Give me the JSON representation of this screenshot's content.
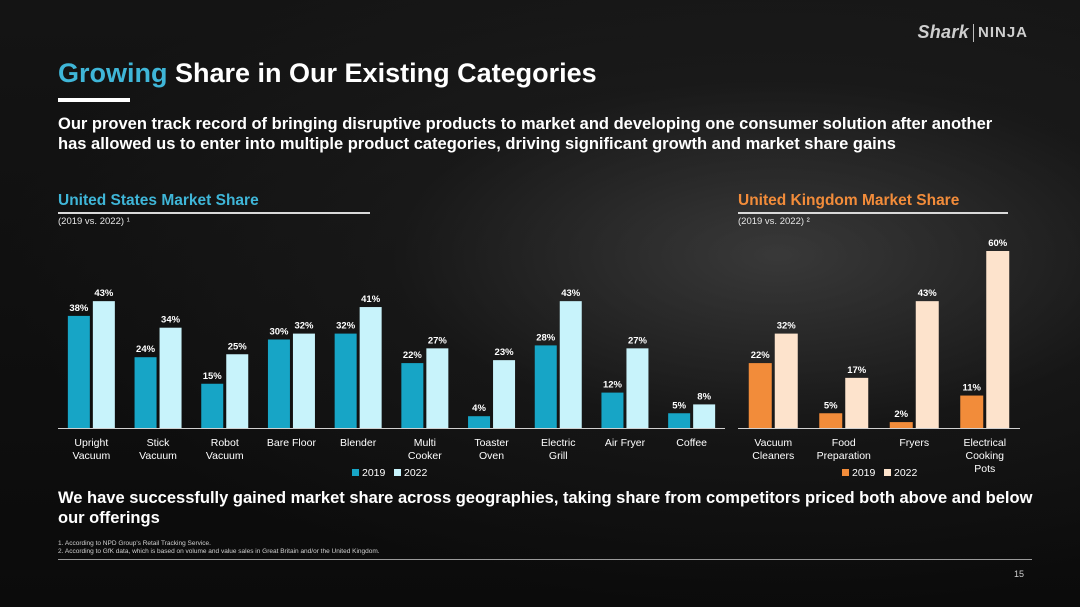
{
  "logo": {
    "brand1": "Shark",
    "brand2": "NINJA"
  },
  "header": {
    "title_accent": "Growing",
    "title_rest": " Share in Our Existing Categories",
    "intro": "Our proven track record of bringing disruptive products to market and developing one consumer solution after another has allowed us to enter into multiple product categories, driving significant growth and market share gains"
  },
  "us": {
    "title": "United States Market Share",
    "subtitle": "(2019 vs. 2022) ¹"
  },
  "uk": {
    "title": "United Kingdom Market Share",
    "subtitle": "(2019 vs. 2022) ²"
  },
  "chart_data": [
    {
      "type": "bar",
      "title": "United States Market Share",
      "subtitle": "(2019 vs. 2022) ¹",
      "categories": [
        [
          "Upright",
          "Vacuum"
        ],
        [
          "Stick",
          "Vacuum"
        ],
        [
          "Robot",
          "Vacuum"
        ],
        [
          "Bare Floor"
        ],
        [
          "Blender"
        ],
        [
          "Multi",
          "Cooker"
        ],
        [
          "Toaster",
          "Oven"
        ],
        [
          "Electric",
          "Grill"
        ],
        [
          "Air Fryer"
        ],
        [
          "Coffee"
        ]
      ],
      "series": [
        {
          "name": "2019",
          "color": "#17a5c6",
          "values": [
            38,
            24,
            15,
            30,
            32,
            22,
            4,
            28,
            12,
            5
          ]
        },
        {
          "name": "2022",
          "color": "#c8f3fb",
          "values": [
            43,
            34,
            25,
            32,
            41,
            27,
            23,
            43,
            27,
            8
          ]
        }
      ],
      "data_labels": [
        [
          "38%",
          "24%",
          "15%",
          "30%",
          "32%",
          "22%",
          "4%",
          "28%",
          "12%",
          "5%"
        ],
        [
          "43%",
          "34%",
          "25%",
          "32%",
          "41%",
          "27%",
          "23%",
          "43%",
          "27%",
          "8%"
        ]
      ],
      "unit": "%",
      "legend": "bottom-center"
    },
    {
      "type": "bar",
      "title": "United Kingdom Market Share",
      "subtitle": "(2019 vs. 2022) ²",
      "categories": [
        [
          "Vacuum",
          "Cleaners"
        ],
        [
          "Food",
          "Preparation"
        ],
        [
          "Fryers"
        ],
        [
          "Electrical",
          "Cooking",
          "Pots"
        ]
      ],
      "series": [
        {
          "name": "2019",
          "color": "#f28c3a",
          "values": [
            22,
            5,
            2,
            11
          ]
        },
        {
          "name": "2022",
          "color": "#fde3cc",
          "values": [
            32,
            17,
            43,
            60
          ]
        }
      ],
      "data_labels": [
        [
          "22%",
          "5%",
          "2%",
          "11%"
        ],
        [
          "32%",
          "17%",
          "43%",
          "60%"
        ]
      ],
      "unit": "%",
      "legend": "bottom-center"
    }
  ],
  "bottom_text": "We have successfully gained market share across geographies, taking share from competitors priced both above and below our offerings",
  "footnotes": [
    "1.  According to NPD Group's Retail Tracking Service.",
    "2.  According to GfK data, which is based on volume and value sales in Great Britain and/or the United Kingdom."
  ],
  "page_number": "15"
}
